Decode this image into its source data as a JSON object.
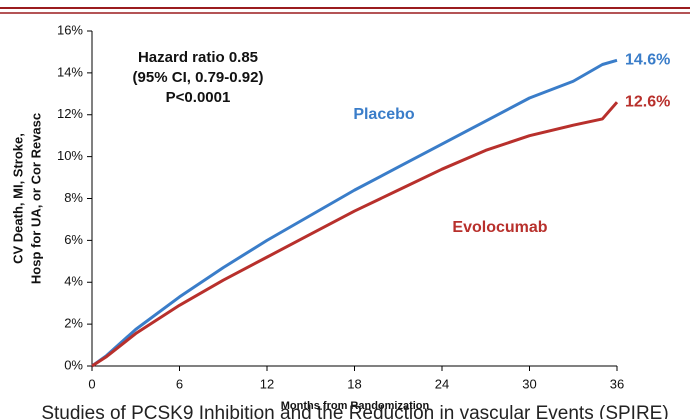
{
  "chart_data": {
    "type": "line",
    "y_label_lines": [
      "CV Death, MI, Stroke,",
      "Hosp for UA, or Cor Revasc"
    ],
    "x_label": "Months from Randomization",
    "annotations": [
      "Hazard ratio 0.85",
      "(95% CI, 0.79-0.92)",
      "P<0.0001"
    ],
    "footer": "Studies of PCSK9 Inhibition and the Reduction in vascular Events (SPIRE)",
    "x": [
      0,
      1,
      3,
      6,
      9,
      12,
      15,
      18,
      21,
      24,
      27,
      30,
      33,
      35,
      36
    ],
    "series": [
      {
        "name": "Placebo",
        "color": "#3a7dc9",
        "values": [
          0,
          0.5,
          1.75,
          3.3,
          4.7,
          6.0,
          7.2,
          8.4,
          9.5,
          10.6,
          11.7,
          12.8,
          13.6,
          14.4,
          14.6
        ],
        "value_labels": [
          null,
          null,
          null,
          null,
          null,
          null,
          null,
          null,
          null,
          null,
          null,
          null,
          null,
          null,
          "14.6%"
        ]
      },
      {
        "name": "Evolocumab",
        "color": "#b8302c",
        "values": [
          0,
          0.45,
          1.55,
          2.9,
          4.1,
          5.2,
          6.3,
          7.4,
          8.4,
          9.4,
          10.3,
          11.0,
          11.5,
          11.8,
          12.6
        ],
        "value_labels": [
          null,
          null,
          null,
          null,
          null,
          null,
          null,
          null,
          null,
          null,
          null,
          null,
          null,
          null,
          "12.6%"
        ]
      }
    ],
    "xlim": [
      0,
      36
    ],
    "xticks": [
      0,
      6,
      12,
      18,
      24,
      30,
      36
    ],
    "ylim": [
      0,
      16
    ],
    "yticks": [
      {
        "value": 0,
        "label": "0%"
      },
      {
        "value": 2,
        "label": "2%"
      },
      {
        "value": 4,
        "label": "4%"
      },
      {
        "value": 6,
        "label": "6%"
      },
      {
        "value": 8,
        "label": "8%"
      },
      {
        "value": 10,
        "label": "10%"
      },
      {
        "value": 12,
        "label": "12%"
      },
      {
        "value": 14,
        "label": "14%"
      },
      {
        "value": 16,
        "label": "16%"
      }
    ],
    "grid": false
  }
}
